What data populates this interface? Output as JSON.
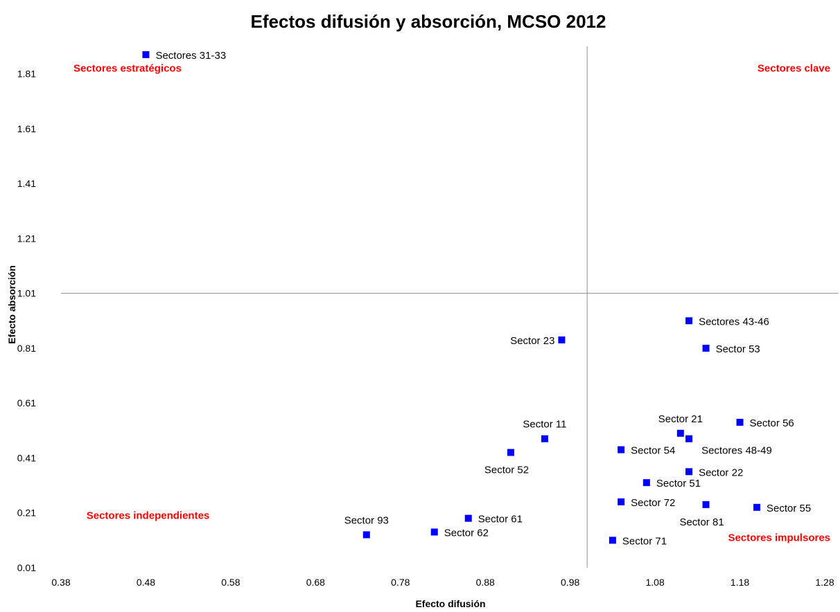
{
  "chart_data": {
    "type": "scatter",
    "title": "Efectos difusión y absorción, MCSO 2012",
    "xlabel": "Efecto difusión",
    "ylabel": "Efecto absorción",
    "xlim": [
      0.38,
      1.28
    ],
    "ylim": [
      0.01,
      1.91
    ],
    "x_ticks": [
      "0.38",
      "0.48",
      "0.58",
      "0.68",
      "0.78",
      "0.88",
      "0.98",
      "1.08",
      "1.18",
      "1.28"
    ],
    "y_ticks": [
      "0.01",
      "0.21",
      "0.41",
      "0.61",
      "0.81",
      "1.01",
      "1.21",
      "1.41",
      "1.61",
      "1.81"
    ],
    "reference_lines": {
      "x": 1.0,
      "y": 1.01
    },
    "grid": false,
    "legend": "none",
    "marker_color": "#0000ff",
    "points": [
      {
        "label": "Sectores 31-33",
        "x": 0.48,
        "y": 1.88,
        "label_pos": "right"
      },
      {
        "label": "Sector 23",
        "x": 0.97,
        "y": 0.84,
        "label_pos": "left"
      },
      {
        "label": "Sector 11",
        "x": 0.95,
        "y": 0.48,
        "label_pos": "above"
      },
      {
        "label": "Sector 52",
        "x": 0.91,
        "y": 0.43,
        "label_pos": "below"
      },
      {
        "label": "Sector 61",
        "x": 0.86,
        "y": 0.19,
        "label_pos": "right"
      },
      {
        "label": "Sector 62",
        "x": 0.82,
        "y": 0.14,
        "label_pos": "right"
      },
      {
        "label": "Sector 93",
        "x": 0.74,
        "y": 0.13,
        "label_pos": "above"
      },
      {
        "label": "Sectores 43-46",
        "x": 1.12,
        "y": 0.91,
        "label_pos": "right"
      },
      {
        "label": "Sector 53",
        "x": 1.14,
        "y": 0.81,
        "label_pos": "right"
      },
      {
        "label": "Sector 56",
        "x": 1.18,
        "y": 0.54,
        "label_pos": "right"
      },
      {
        "label": "Sector 21",
        "x": 1.11,
        "y": 0.5,
        "label_pos": "above"
      },
      {
        "label": "Sectores 48-49",
        "x": 1.12,
        "y": 0.48,
        "label_pos": "below-right"
      },
      {
        "label": "Sector 54",
        "x": 1.04,
        "y": 0.44,
        "label_pos": "right"
      },
      {
        "label": "Sector 22",
        "x": 1.12,
        "y": 0.36,
        "label_pos": "right"
      },
      {
        "label": "Sector 51",
        "x": 1.07,
        "y": 0.32,
        "label_pos": "right"
      },
      {
        "label": "Sector 72",
        "x": 1.04,
        "y": 0.25,
        "label_pos": "right"
      },
      {
        "label": "Sector 81",
        "x": 1.14,
        "y": 0.24,
        "label_pos": "below"
      },
      {
        "label": "Sector 55",
        "x": 1.2,
        "y": 0.23,
        "label_pos": "right"
      },
      {
        "label": "Sector 71",
        "x": 1.03,
        "y": 0.11,
        "label_pos": "right"
      }
    ],
    "annotations": [
      {
        "text": "Sectores estratégicos",
        "x": 0.38,
        "y": 1.83,
        "color": "#ff0000"
      },
      {
        "text": "Sectores clave",
        "x": 1.28,
        "y": 1.83,
        "color": "#ff0000"
      },
      {
        "text": "Sectores independientes",
        "x": 0.41,
        "y": 0.2,
        "color": "#ff0000"
      },
      {
        "text": "Sectores  impulsores",
        "x": 1.28,
        "y": 0.12,
        "color": "#ff0000"
      }
    ]
  }
}
